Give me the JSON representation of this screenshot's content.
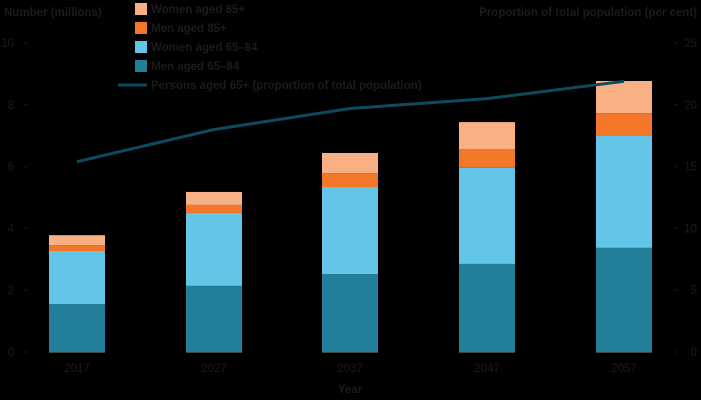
{
  "chart_data": {
    "type": "bar",
    "stacked": true,
    "title": "",
    "xlabel": "Year",
    "ylabel": "Number (millions)",
    "y2label": "Proportion of total population (per cent)",
    "categories": [
      "2017",
      "2027",
      "2037",
      "2047",
      "2057"
    ],
    "ylim": [
      0,
      10
    ],
    "yticks": [
      0,
      2,
      4,
      6,
      8,
      10
    ],
    "y2lim": [
      0,
      25
    ],
    "y2ticks": [
      0,
      5,
      10,
      15,
      20,
      25
    ],
    "grid": false,
    "legend_position": "top-center",
    "series": [
      {
        "name": "Men aged 65–84",
        "type": "bar",
        "axis": "left",
        "color": "#237F99",
        "values": [
          1.55,
          2.14,
          2.52,
          2.85,
          3.37
        ]
      },
      {
        "name": "Women aged 65–84",
        "type": "bar",
        "axis": "left",
        "color": "#64C6E6",
        "values": [
          1.72,
          2.36,
          2.82,
          3.11,
          3.62
        ]
      },
      {
        "name": "Men aged 85+",
        "type": "bar",
        "axis": "left",
        "color": "#F47628",
        "values": [
          0.19,
          0.26,
          0.45,
          0.61,
          0.74
        ]
      },
      {
        "name": "Women aged 85+",
        "type": "bar",
        "axis": "left",
        "color": "#F9B084",
        "values": [
          0.32,
          0.42,
          0.65,
          0.87,
          1.04
        ]
      },
      {
        "name": "Persons aged 65+ (proportion of total population)",
        "type": "line",
        "axis": "right",
        "color": "#0E4A5E",
        "values": [
          15.4,
          18.0,
          19.7,
          20.5,
          21.9
        ]
      }
    ]
  },
  "legend": {
    "items": [
      {
        "label": "Women aged 85+",
        "color": "#F9B084",
        "kind": "swatch"
      },
      {
        "label": "Men aged 85+",
        "color": "#F47628",
        "kind": "swatch"
      },
      {
        "label": "Women aged 65–84",
        "color": "#64C6E6",
        "kind": "swatch"
      },
      {
        "label": "Men aged 65–84",
        "color": "#237F99",
        "kind": "swatch"
      },
      {
        "label": "Persons aged 65+ (proportion of total population)",
        "color": "#0E4A5E",
        "kind": "line"
      }
    ]
  }
}
